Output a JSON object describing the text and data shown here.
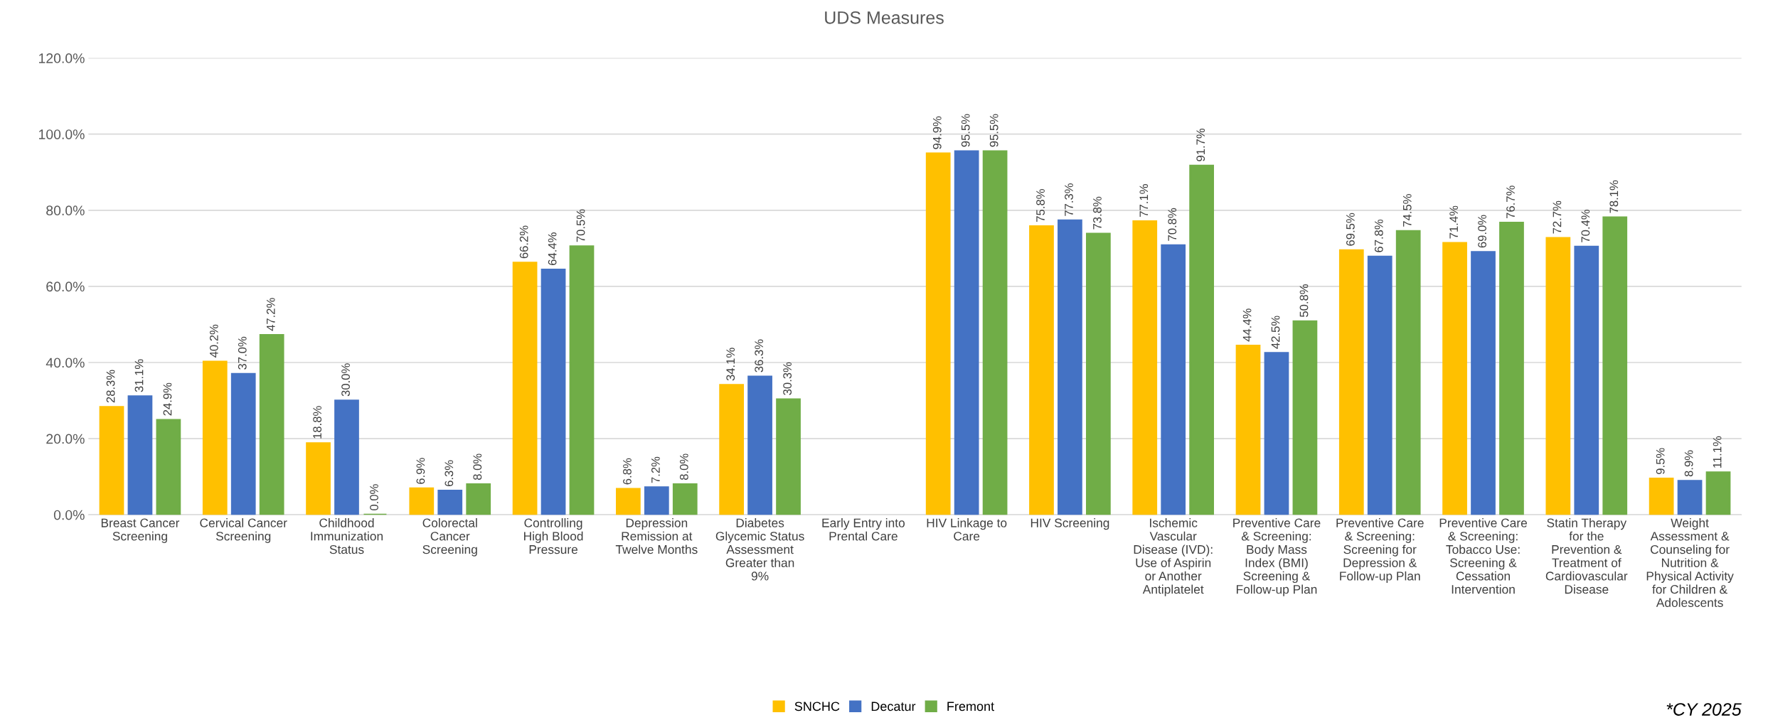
{
  "chart_data": {
    "type": "bar",
    "title": "UDS Measures",
    "categories": [
      "Breast Cancer\nScreening",
      "Cervical Cancer\nScreening",
      "Childhood\nImmunization\nStatus",
      "Colorectal\nCancer\nScreening",
      "Controlling\nHigh Blood\nPressure",
      "Depression\nRemission at\nTwelve Months",
      "Diabetes\nGlycemic Status\nAssessment\nGreater than\n9%",
      "Early Entry into\nPrental Care",
      "HIV Linkage to\nCare",
      "HIV Screening",
      "Ischemic\nVascular\nDisease (IVD):\nUse of Aspirin\nor Another\nAntiplatelet",
      "Preventive Care\n& Screening:\nBody Mass\nIndex (BMI)\nScreening &\nFollow-up Plan",
      "Preventive Care\n& Screening:\nScreening for\nDepression &\nFollow-up Plan",
      "Preventive Care\n& Screening:\nTobacco Use:\nScreening &\nCessation\nIntervention",
      "Statin Therapy\nfor the\nPrevention &\nTreatment of\nCardiovascular\nDisease",
      "Weight\nAssessment &\nCounseling for\nNutrition &\nPhysical Activity\nfor Children &\nAdolescents"
    ],
    "series": [
      {
        "name": "SNCHC",
        "color": "#ffc000",
        "values": [
          28.3,
          40.2,
          18.8,
          6.9,
          66.2,
          6.8,
          34.1,
          null,
          94.9,
          75.8,
          77.1,
          44.4,
          69.5,
          71.4,
          72.7,
          9.5
        ],
        "value_labels": [
          "28.3%",
          "40.2%",
          "18.8%",
          "6.9%",
          "66.2%",
          "6.8%",
          "34.1%",
          null,
          "94.9%",
          "75.8%",
          "77.1%",
          "44.4%",
          "69.5%",
          "71.4%",
          "72.7%",
          "9.5%"
        ]
      },
      {
        "name": "Decatur",
        "color": "#4472c4",
        "values": [
          31.1,
          37.0,
          30.0,
          6.3,
          64.4,
          7.2,
          36.3,
          null,
          95.5,
          77.3,
          70.8,
          42.5,
          67.8,
          69.0,
          70.4,
          8.9
        ],
        "value_labels": [
          "31.1%",
          "37.0%",
          "30.0%",
          "6.3%",
          "64.4%",
          "7.2%",
          "36.3%",
          null,
          "95.5%",
          "77.3%",
          "70.8%",
          "42.5%",
          "67.8%",
          "69.0%",
          "70.4%",
          "8.9%"
        ]
      },
      {
        "name": "Fremont",
        "color": "#70ad47",
        "values": [
          24.9,
          47.2,
          0.0,
          8.0,
          70.5,
          8.0,
          30.3,
          null,
          95.5,
          73.8,
          91.7,
          50.8,
          74.5,
          76.7,
          78.1,
          11.1
        ],
        "value_labels": [
          "24.9%",
          "47.2%",
          "0.0%",
          "8.0%",
          "70.5%",
          "8.0%",
          "30.3%",
          null,
          "95.5%",
          "73.8%",
          "91.7%",
          "50.8%",
          "74.5%",
          "76.7%",
          "78.1%",
          "11.1%"
        ]
      }
    ],
    "ylim": [
      0,
      120
    ],
    "yticks": [
      {
        "value": 0,
        "label": "0.0%"
      },
      {
        "value": 20,
        "label": "20.0%"
      },
      {
        "value": 40,
        "label": "40.0%"
      },
      {
        "value": 60,
        "label": "60.0%"
      },
      {
        "value": 80,
        "label": "80.0%"
      },
      {
        "value": 100,
        "label": "100.0%"
      },
      {
        "value": 120,
        "label": "120.0%"
      }
    ],
    "grid": "y",
    "legend": "bottom",
    "annotations": [
      "*CY 2025"
    ]
  }
}
